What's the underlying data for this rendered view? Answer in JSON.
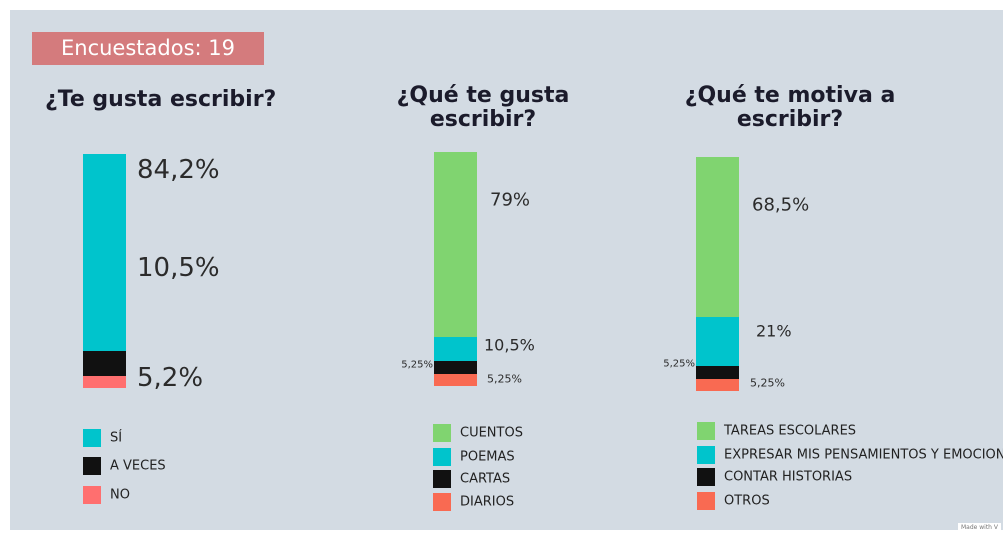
{
  "badge": "Encuestados: 19",
  "watermark": "Made with V",
  "chart_data": [
    {
      "type": "bar",
      "stacked": true,
      "title": "¿Te gusta escribir?",
      "series": [
        {
          "name": "SÍ",
          "color": "#00c4cc",
          "values": [
            84.2
          ],
          "value_labels": [
            "84,2%"
          ]
        },
        {
          "name": "A VECES",
          "color": "#111111",
          "values": [
            10.5
          ],
          "value_labels": [
            "10,5%"
          ]
        },
        {
          "name": "NO",
          "color": "#ff6f6f",
          "values": [
            5.2
          ],
          "value_labels": [
            "5,2%"
          ]
        }
      ]
    },
    {
      "type": "bar",
      "stacked": true,
      "title": "¿Qué te gusta escribir?",
      "series": [
        {
          "name": "CUENTOS",
          "color": "#80d470",
          "values": [
            79
          ],
          "value_labels": [
            "79%"
          ]
        },
        {
          "name": "POEMAS",
          "color": "#00c4cc",
          "values": [
            10.5
          ],
          "value_labels": [
            "10,5%"
          ]
        },
        {
          "name": "CARTAS",
          "color": "#111111",
          "values": [
            5.25
          ],
          "value_labels": [
            "5,25%"
          ]
        },
        {
          "name": "DIARIOS",
          "color": "#f96a52",
          "values": [
            5.25
          ],
          "value_labels": [
            "5,25%"
          ]
        }
      ]
    },
    {
      "type": "bar",
      "stacked": true,
      "title": "¿Qué te motiva a escribir?",
      "series": [
        {
          "name": "TAREAS ESCOLARES",
          "color": "#80d470",
          "values": [
            68.5
          ],
          "value_labels": [
            "68,5%"
          ]
        },
        {
          "name": "EXPRESAR MIS PENSAMIENTOS Y EMOCIONES",
          "color": "#00c4cc",
          "values": [
            21
          ],
          "value_labels": [
            "21%"
          ]
        },
        {
          "name": "CONTAR HISTORIAS",
          "color": "#111111",
          "values": [
            5.25
          ],
          "value_labels": [
            "5,25%"
          ]
        },
        {
          "name": "OTROS",
          "color": "#f96a52",
          "values": [
            5.25
          ],
          "value_labels": [
            "5,25%"
          ]
        }
      ]
    }
  ]
}
